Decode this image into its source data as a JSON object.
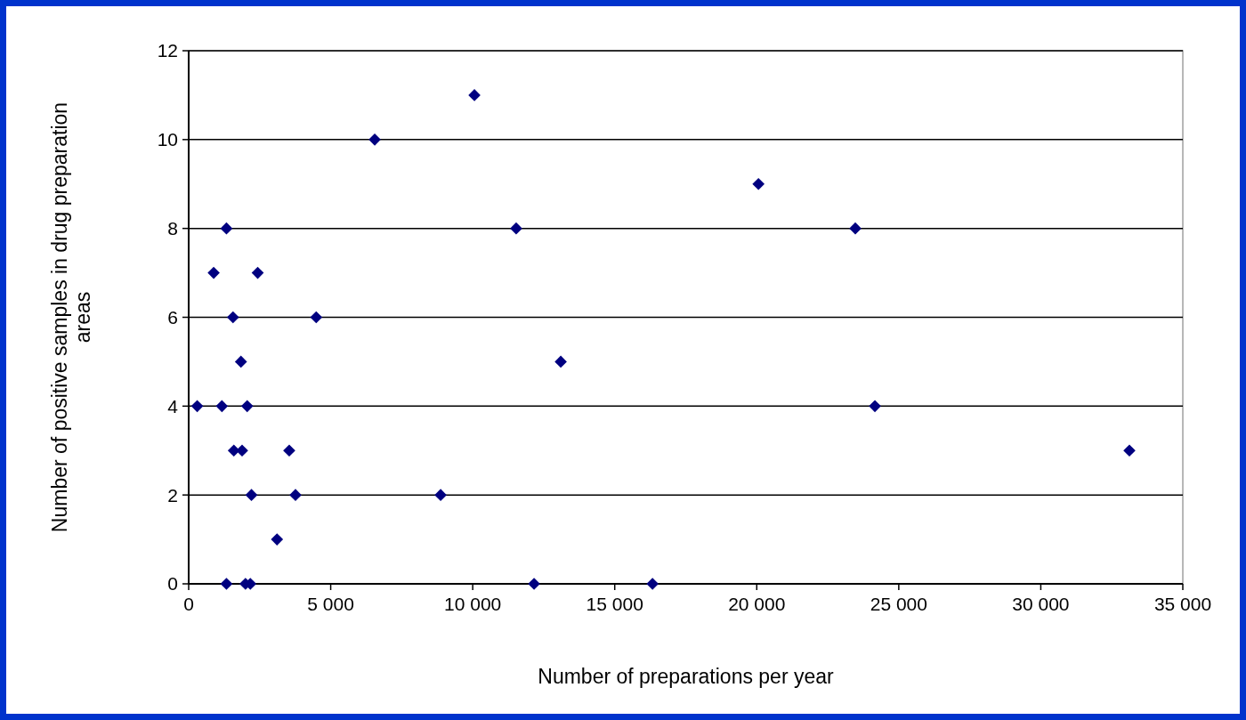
{
  "chart_data": {
    "type": "scatter",
    "xlabel": "Number of preparations per year",
    "ylabel": "Number of positive samples in drug preparation areas",
    "xlim": [
      0,
      35000
    ],
    "xticks": [
      0,
      {
        "value": 5000,
        "label": "5 000"
      },
      {
        "value": 10000,
        "label": "10 000"
      },
      {
        "value": 15000,
        "label": "15 000"
      },
      {
        "value": 20000,
        "label": "20 000"
      },
      {
        "value": 25000,
        "label": "25 000"
      },
      {
        "value": 30000,
        "label": "30 000"
      },
      {
        "value": 35000,
        "label": "35 000"
      }
    ],
    "ylim": [
      0,
      12
    ],
    "yticks": [
      0,
      2,
      4,
      6,
      8,
      10,
      12
    ],
    "grid": "y",
    "marker": "diamond",
    "series": [
      {
        "color": "#000080",
        "x": [
          880,
          2430,
          1330,
          1560,
          4490,
          1840,
          300,
          1170,
          2060,
          1590,
          1880,
          3540,
          2210,
          3760,
          3110,
          1330,
          2000,
          2170,
          6550,
          10060,
          11530,
          13100,
          8870,
          12160,
          16330,
          20060,
          23470,
          24160,
          33120
        ],
        "values": [
          7,
          7,
          8,
          6,
          6,
          5,
          4,
          4,
          4,
          3,
          3,
          3,
          2,
          2,
          1,
          0,
          0,
          0,
          10,
          11,
          8,
          5,
          2,
          0,
          0,
          9,
          8,
          4,
          3
        ]
      }
    ]
  }
}
